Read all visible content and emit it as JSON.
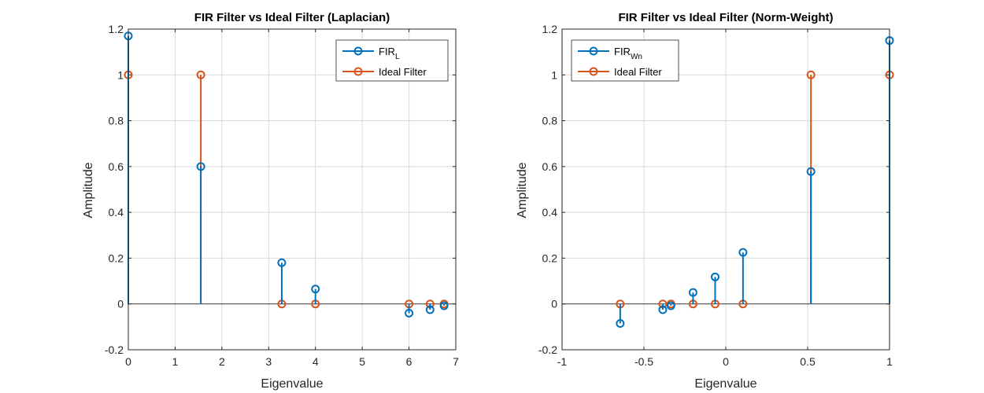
{
  "colors": {
    "fir": "#0072BD",
    "ideal": "#D95319"
  },
  "chart_data": [
    {
      "type": "stem",
      "title": "FIR Filter vs Ideal Filter (Laplacian)",
      "xlabel": "Eigenvalue",
      "ylabel": "Amplitude",
      "xlim": [
        0,
        7
      ],
      "ylim": [
        -0.2,
        1.2
      ],
      "xticks": [
        0,
        1,
        2,
        3,
        4,
        5,
        6,
        7
      ],
      "xtick_labels": [
        "0",
        "1",
        "2",
        "3",
        "4",
        "5",
        "6",
        "7"
      ],
      "yticks": [
        -0.2,
        0,
        0.2,
        0.4,
        0.6,
        0.8,
        1,
        1.2
      ],
      "ytick_labels": [
        "-0.2",
        "0",
        "0.2",
        "0.4",
        "0.6",
        "0.8",
        "1",
        "1.2"
      ],
      "grid": true,
      "legend_position": "top-right",
      "series": [
        {
          "name": "FIR_L",
          "legend_main": "FIR",
          "legend_sub": "L",
          "color_key": "fir",
          "x": [
            0,
            1.55,
            3.28,
            4.0,
            6.0,
            6.45,
            6.75
          ],
          "y": [
            1.17,
            0.6,
            0.18,
            0.065,
            -0.04,
            -0.025,
            -0.008
          ]
        },
        {
          "name": "Ideal Filter",
          "legend_main": "Ideal Filter",
          "legend_sub": "",
          "color_key": "ideal",
          "x": [
            0,
            1.55,
            3.28,
            4.0,
            6.0,
            6.45,
            6.75
          ],
          "y": [
            1,
            1,
            0,
            0,
            0,
            0,
            0
          ]
        }
      ]
    },
    {
      "type": "stem",
      "title": "FIR Filter vs Ideal Filter (Norm-Weight)",
      "xlabel": "Eigenvalue",
      "ylabel": "Amplitude",
      "xlim": [
        -1,
        1
      ],
      "ylim": [
        -0.2,
        1.2
      ],
      "xticks": [
        -1,
        -0.5,
        0,
        0.5,
        1
      ],
      "xtick_labels": [
        "-1",
        "-0.5",
        "0",
        "0.5",
        "1"
      ],
      "yticks": [
        -0.2,
        0,
        0.2,
        0.4,
        0.6,
        0.8,
        1,
        1.2
      ],
      "ytick_labels": [
        "-0.2",
        "0",
        "0.2",
        "0.4",
        "0.6",
        "0.8",
        "1",
        "1.2"
      ],
      "grid": true,
      "legend_position": "top-left",
      "series": [
        {
          "name": "FIR_Wn",
          "legend_main": "FIR",
          "legend_sub": "Wn",
          "color_key": "fir",
          "x": [
            -0.645,
            -0.385,
            -0.335,
            -0.2,
            -0.065,
            0.105,
            0.52,
            1.0
          ],
          "y": [
            -0.085,
            -0.025,
            -0.008,
            0.05,
            0.118,
            0.225,
            0.578,
            1.15
          ]
        },
        {
          "name": "Ideal Filter",
          "legend_main": "Ideal Filter",
          "legend_sub": "",
          "color_key": "ideal",
          "x": [
            -0.645,
            -0.385,
            -0.335,
            -0.2,
            -0.065,
            0.105,
            0.52,
            1.0
          ],
          "y": [
            0,
            0,
            0,
            0,
            0,
            0,
            1,
            1
          ]
        }
      ]
    }
  ]
}
